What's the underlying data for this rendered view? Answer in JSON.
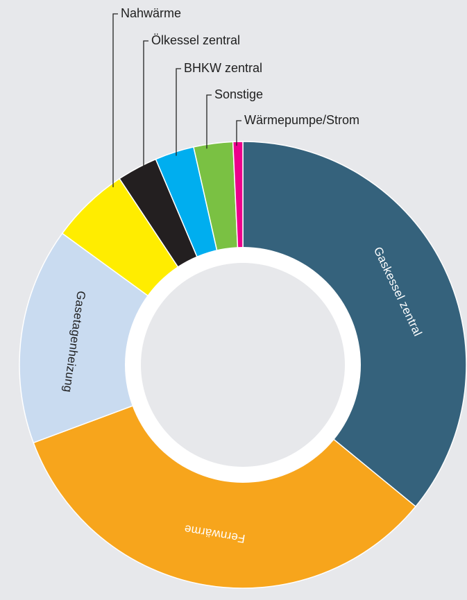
{
  "colors": {
    "background": "#e7e8eb",
    "hole": "#e7e8eb"
  },
  "chart_data": {
    "type": "pie",
    "variant": "donut",
    "title": "",
    "categories": [
      "Gaskessel zentral",
      "Fernwärme",
      "Gasetagenheizung",
      "Nahwärme",
      "Ölkessel zentral",
      "BHKW zentral",
      "Sonstige",
      "Wärmepumpe/Strom"
    ],
    "values": [
      35.5,
      33.0,
      15.5,
      5.6,
      2.9,
      2.8,
      2.8,
      0.7
    ],
    "colors": [
      "#35627c",
      "#f7a51c",
      "#c9dbf0",
      "#ffed00",
      "#231f20",
      "#00aeef",
      "#7ac143",
      "#ec008c"
    ],
    "label_colors": [
      "#ffffff",
      "#ffffff",
      "#1f1f1f",
      "#1f1f1f",
      "#ffffff",
      "#ffffff",
      "#ffffff",
      "#ffffff"
    ],
    "inside_labels": [
      "Gaskessel zentral",
      "Fernwärme",
      "Gasetagenheizung"
    ],
    "callout_labels": [
      "Nahwärme",
      "Ölkessel zentral",
      "BHKW zentral",
      "Sonstige",
      "Wärmepumpe/Strom"
    ],
    "start": "12 o'clock",
    "direction": "clockwise",
    "legend": "none"
  }
}
